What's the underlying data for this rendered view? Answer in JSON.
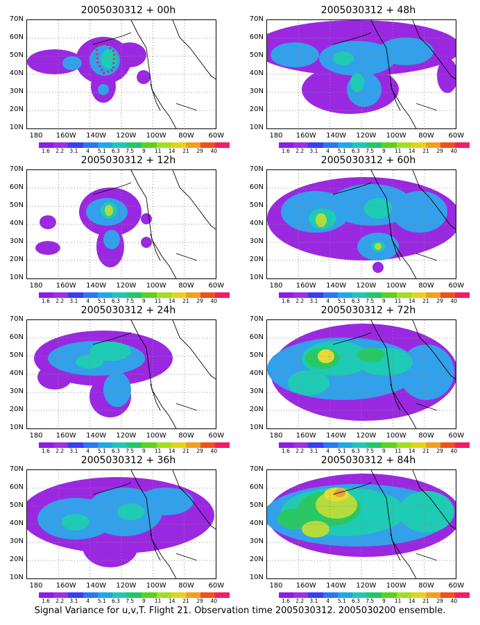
{
  "panels": [
    {
      "title": "2005030312 + 00h"
    },
    {
      "title": "2005030312 + 48h"
    },
    {
      "title": "2005030312 + 12h"
    },
    {
      "title": "2005030312 + 60h"
    },
    {
      "title": "2005030312 + 24h"
    },
    {
      "title": "2005030312 + 72h"
    },
    {
      "title": "2005030312 + 36h"
    },
    {
      "title": "2005030312 + 84h"
    }
  ],
  "y_axis_labels": [
    "70N",
    "60N",
    "50N",
    "40N",
    "30N",
    "20N",
    "10N"
  ],
  "x_axis_labels": [
    "180",
    "160W",
    "140W",
    "120W",
    "100W",
    "80W",
    "60W"
  ],
  "colorbar": {
    "labels": [
      "1.6",
      "2.2",
      "3.1",
      "4",
      "5.1",
      "6.3",
      "7.5",
      "9",
      "11",
      "14",
      "21",
      "29",
      "40"
    ],
    "colors": [
      "#8c1ee6",
      "#a030e0",
      "#3c3cf0",
      "#2a78f0",
      "#1ea8e6",
      "#1ec8b4",
      "#1ec868",
      "#5ad21e",
      "#a6dc1e",
      "#e6d21e",
      "#f0a01e",
      "#f0501e",
      "#f01e64"
    ]
  },
  "caption": "Signal Variance for u,v,T. Flight 21. Observation time 2005030312. 2005030200 ensemble.",
  "colors": {
    "purple": "#9b28e1",
    "blue": "#3c50f0",
    "lightblue": "#32a0eb",
    "teal": "#1ecbb4",
    "green": "#28c864",
    "yellowgreen": "#b4dc3c",
    "yellow": "#e6dc32",
    "orange": "#e6a03c",
    "coast": "#000000",
    "grid": "#888888",
    "flight_track": "#e61450"
  }
}
